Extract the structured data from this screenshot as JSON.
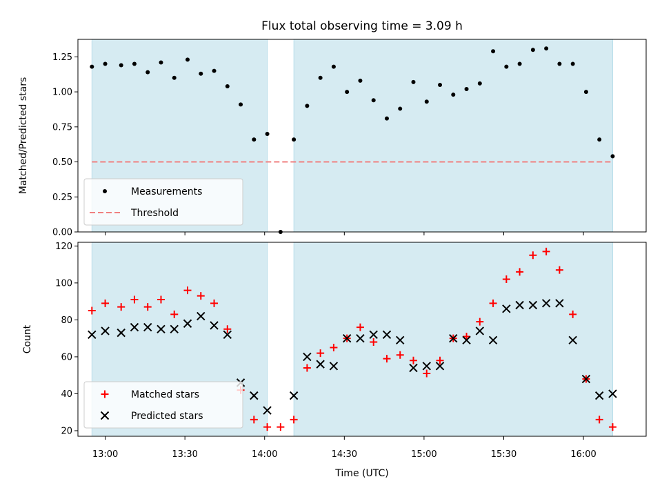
{
  "chart_data": [
    {
      "type": "scatter",
      "title": "Flux total observing time = 3.09 h",
      "ylabel": "Matched/Predicted stars",
      "xlabel": "",
      "ylim": [
        0,
        1.375
      ],
      "yticks": [
        "0.00",
        "0.25",
        "0.50",
        "0.75",
        "1.00",
        "1.25"
      ],
      "shaded_spans": [
        [
          "12:55",
          "14:01"
        ],
        [
          "14:11",
          "16:11"
        ]
      ],
      "threshold": 0.5,
      "legend": "lower-left",
      "series": [
        {
          "name": "Measurements",
          "color": "#000000",
          "marker": "dot",
          "x": [
            "12:55",
            "13:00",
            "13:06",
            "13:11",
            "13:16",
            "13:21",
            "13:26",
            "13:31",
            "13:36",
            "13:41",
            "13:46",
            "13:51",
            "13:56",
            "14:01",
            "14:06",
            "14:11",
            "14:16",
            "14:21",
            "14:26",
            "14:31",
            "14:36",
            "14:41",
            "14:46",
            "14:51",
            "14:56",
            "15:01",
            "15:06",
            "15:11",
            "15:16",
            "15:21",
            "15:26",
            "15:31",
            "15:36",
            "15:41",
            "15:46",
            "15:51",
            "15:56",
            "16:01",
            "16:06",
            "16:11"
          ],
          "y": [
            1.18,
            1.2,
            1.19,
            1.2,
            1.14,
            1.21,
            1.1,
            1.23,
            1.13,
            1.15,
            1.04,
            0.91,
            0.66,
            0.7,
            0.0,
            0.66,
            0.9,
            1.1,
            1.18,
            1.0,
            1.08,
            0.94,
            0.81,
            0.88,
            1.07,
            0.93,
            1.05,
            0.98,
            1.02,
            1.06,
            1.29,
            1.18,
            1.2,
            1.3,
            1.31,
            1.2,
            1.2,
            1.0,
            0.66,
            0.54
          ]
        },
        {
          "name": "Threshold",
          "color": "#f08080",
          "style": "dashed",
          "x": [
            "12:55",
            "16:11"
          ],
          "y": [
            0.5,
            0.5
          ]
        }
      ]
    },
    {
      "type": "scatter",
      "title": "",
      "ylabel": "Count",
      "xlabel": "Time (UTC)",
      "ylim": [
        17,
        122
      ],
      "yticks": [
        "20",
        "40",
        "60",
        "80",
        "100",
        "120"
      ],
      "xticks": [
        "13:00",
        "13:30",
        "14:00",
        "14:30",
        "15:00",
        "15:30",
        "16:00"
      ],
      "shaded_spans": [
        [
          "12:55",
          "14:01"
        ],
        [
          "14:11",
          "16:11"
        ]
      ],
      "legend": "lower-left",
      "series": [
        {
          "name": "Matched stars",
          "color": "#ff0000",
          "marker": "plus",
          "x": [
            "12:55",
            "13:00",
            "13:06",
            "13:11",
            "13:16",
            "13:21",
            "13:26",
            "13:31",
            "13:36",
            "13:41",
            "13:46",
            "13:51",
            "13:56",
            "14:01",
            "14:06",
            "14:11",
            "14:16",
            "14:21",
            "14:26",
            "14:31",
            "14:36",
            "14:41",
            "14:46",
            "14:51",
            "14:56",
            "15:01",
            "15:06",
            "15:11",
            "15:16",
            "15:21",
            "15:26",
            "15:31",
            "15:36",
            "15:41",
            "15:46",
            "15:51",
            "15:56",
            "16:01",
            "16:06",
            "16:11"
          ],
          "y": [
            85,
            89,
            87,
            91,
            87,
            91,
            83,
            96,
            93,
            89,
            75,
            42,
            26,
            22,
            22,
            26,
            54,
            62,
            65,
            70,
            76,
            68,
            59,
            61,
            58,
            51,
            58,
            70,
            71,
            79,
            89,
            102,
            106,
            115,
            117,
            107,
            83,
            48,
            26,
            22
          ]
        },
        {
          "name": "Predicted stars",
          "color": "#000000",
          "marker": "x",
          "x": [
            "12:55",
            "13:00",
            "13:06",
            "13:11",
            "13:16",
            "13:21",
            "13:26",
            "13:31",
            "13:36",
            "13:41",
            "13:46",
            "13:51",
            "13:56",
            "14:01",
            "14:11",
            "14:16",
            "14:21",
            "14:26",
            "14:31",
            "14:36",
            "14:41",
            "14:46",
            "14:51",
            "14:56",
            "15:01",
            "15:06",
            "15:11",
            "15:16",
            "15:21",
            "15:26",
            "15:31",
            "15:36",
            "15:41",
            "15:46",
            "15:51",
            "15:56",
            "16:01",
            "16:06",
            "16:11"
          ],
          "y": [
            72,
            74,
            73,
            76,
            76,
            75,
            75,
            78,
            82,
            77,
            72,
            46,
            39,
            31,
            39,
            60,
            56,
            55,
            70,
            70,
            72,
            72,
            69,
            54,
            55,
            55,
            70,
            69,
            74,
            69,
            86,
            88,
            88,
            89,
            89,
            69,
            48,
            39,
            40
          ]
        }
      ]
    }
  ]
}
